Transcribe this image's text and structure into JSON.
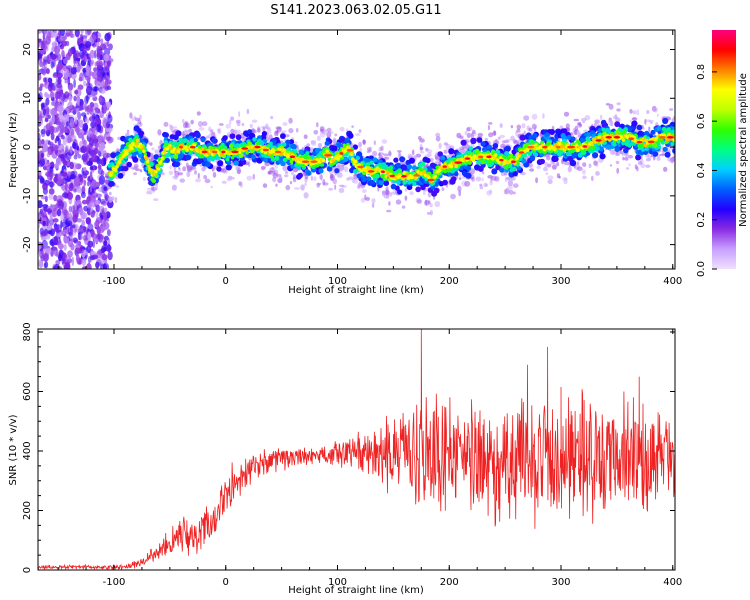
{
  "title": "S141.2023.063.02.05.G11",
  "chart_data": [
    {
      "type": "heatmap",
      "xlabel": "Height of straight line (km)",
      "ylabel": "Frequency (Hz)",
      "xlim": [
        -168,
        402
      ],
      "ylim": [
        -25,
        24
      ],
      "xticks": [
        -100,
        0,
        100,
        200,
        300,
        400
      ],
      "yticks": [
        -20,
        -10,
        0,
        10,
        20
      ],
      "colorbar": {
        "label": "Normalized spectral amplitude",
        "range": [
          0,
          0.97
        ],
        "ticks": [
          0.0,
          0.2,
          0.4,
          0.6,
          0.8
        ],
        "colormap": [
          "#f0e0ff",
          "#c8a0ff",
          "#8a2be2",
          "#2200ff",
          "#0060ff",
          "#00d0ff",
          "#00ff80",
          "#30ff00",
          "#c0ff00",
          "#ffff00",
          "#ff8000",
          "#ff0000",
          "#ff0080"
        ]
      },
      "ridge": {
        "x": [
          -100,
          -95,
          -90,
          -85,
          -80,
          -75,
          -70,
          -65,
          -60,
          -55,
          -50,
          -45,
          -40,
          -30,
          -20,
          -10,
          0,
          10,
          20,
          30,
          40,
          50,
          60,
          70,
          80,
          85,
          90,
          95,
          100,
          105,
          110,
          115,
          120,
          130,
          140,
          150,
          160,
          170,
          175,
          180,
          185,
          190,
          195,
          200,
          210,
          220,
          230,
          240,
          250,
          260,
          265,
          270,
          280,
          290,
          300,
          310,
          320,
          330,
          340,
          350,
          360,
          370,
          380,
          390,
          400
        ],
        "y": [
          -5,
          -3,
          -1,
          0,
          1,
          0,
          -3,
          -6,
          -4,
          -1,
          0,
          -1,
          0,
          0,
          -1,
          -1,
          -1,
          -1,
          0,
          0,
          -1,
          -1,
          -2,
          -3,
          -3,
          -3,
          -1,
          -3,
          -2,
          -1,
          0,
          -3,
          -4,
          -5,
          -5,
          -6,
          -6,
          -6,
          -5,
          -6,
          -7,
          -5,
          -4,
          -4,
          -3,
          -2,
          -2,
          -2,
          -3,
          -3,
          -1,
          0,
          0,
          0,
          0,
          0,
          0,
          1,
          2,
          2,
          2,
          1,
          1,
          2,
          2
        ]
      }
    },
    {
      "type": "line",
      "xlabel": "Height of straight line (km)",
      "ylabel": "SNR (10 * v/v)",
      "xlim": [
        -168,
        402
      ],
      "ylim": [
        0,
        810
      ],
      "xticks": [
        -100,
        0,
        100,
        200,
        300,
        400
      ],
      "yticks": [
        0,
        200,
        400,
        600,
        800
      ],
      "color": "#ee2222",
      "envelope": {
        "x": [
          -168,
          -120,
          -90,
          -80,
          -70,
          -60,
          -50,
          -40,
          -30,
          -20,
          -10,
          0,
          10,
          20,
          40,
          60,
          80,
          100,
          120,
          140,
          160,
          180,
          200,
          220,
          240,
          260,
          280,
          300,
          320,
          340,
          360,
          380,
          400
        ],
        "center": [
          10,
          10,
          10,
          20,
          40,
          60,
          90,
          120,
          110,
          150,
          180,
          250,
          300,
          340,
          370,
          380,
          385,
          390,
          400,
          390,
          390,
          395,
          385,
          370,
          360,
          350,
          380,
          360,
          390,
          390,
          380,
          380,
          390
        ],
        "spread": [
          8,
          8,
          10,
          20,
          25,
          35,
          60,
          80,
          80,
          90,
          90,
          90,
          80,
          60,
          50,
          40,
          40,
          50,
          80,
          150,
          200,
          240,
          250,
          250,
          250,
          250,
          260,
          260,
          260,
          250,
          240,
          220,
          180
        ]
      },
      "peaks": [
        {
          "x": 175,
          "y": 810
        },
        {
          "x": 288,
          "y": 750
        },
        {
          "x": 270,
          "y": 690
        },
        {
          "x": 370,
          "y": 650
        },
        {
          "x": 300,
          "y": 615
        }
      ]
    }
  ]
}
